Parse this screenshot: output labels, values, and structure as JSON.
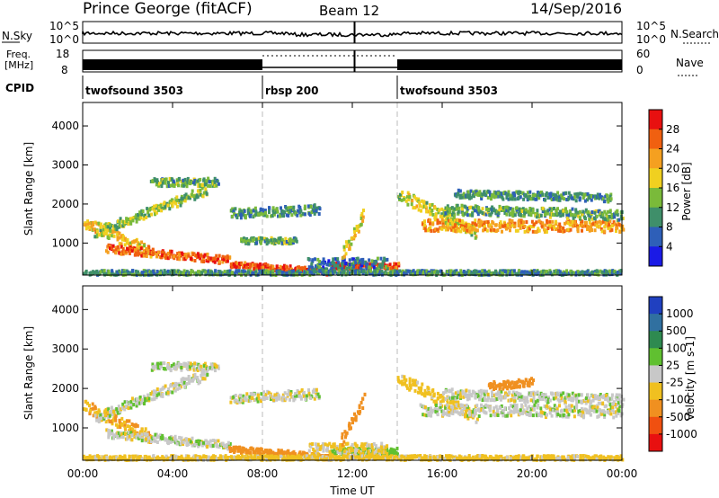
{
  "header": {
    "station": "Prince George (fitACF)",
    "beam": "Beam 12",
    "date": "14/Sep/2016"
  },
  "noise_panel": {
    "left_label": "N.Sky",
    "left_ticks": [
      "10^5",
      "10^0"
    ],
    "right_label": "N.Search",
    "right_ticks": [
      "10^5",
      "10^0"
    ]
  },
  "freq_panel": {
    "left_label_1": "Freq.",
    "left_label_2": "[MHz]",
    "left_ticks": [
      "18",
      "8"
    ],
    "right_label": "Nave",
    "right_ticks": [
      "60",
      "0"
    ]
  },
  "cpid": {
    "label": "CPID",
    "segments": [
      {
        "start": 0,
        "end": 8,
        "name": "twofsound 3503"
      },
      {
        "start": 8,
        "end": 14,
        "name": "rbsp 200"
      },
      {
        "start": 14,
        "end": 24,
        "name": "twofsound 3503"
      }
    ]
  },
  "chart_data": [
    {
      "type": "heatmap",
      "panel": "power",
      "ylabel": "Slant Range [km]",
      "xlim": [
        0,
        24
      ],
      "ylim": [
        180,
        4600
      ],
      "yticks": [
        1000,
        2000,
        3000,
        4000
      ],
      "colorbar": {
        "label": "Power [dB]",
        "ticks": [
          "4",
          "8",
          "12",
          "16",
          "20",
          "24",
          "28"
        ],
        "colors": [
          "#1a1ae6",
          "#2e5fb8",
          "#3f8f6a",
          "#7aba3a",
          "#f0d020",
          "#f5a020",
          "#f06010",
          "#e81010"
        ]
      },
      "echo_bands": [
        {
          "t0": 0.0,
          "t1": 3.0,
          "r0": 1600,
          "r1": 800,
          "w": 300,
          "level": 20
        },
        {
          "t0": 1.0,
          "t1": 6.5,
          "r0": 900,
          "r1": 600,
          "w": 200,
          "level": 26
        },
        {
          "t0": 6.5,
          "t1": 11.0,
          "r0": 500,
          "r1": 300,
          "w": 150,
          "level": 28
        },
        {
          "t0": 11.0,
          "t1": 14.0,
          "r0": 450,
          "r1": 450,
          "w": 150,
          "level": 28
        },
        {
          "t0": 0.5,
          "t1": 5.5,
          "r0": 1300,
          "r1": 2400,
          "w": 250,
          "level": 14
        },
        {
          "t0": 3.0,
          "t1": 6.0,
          "r0": 2600,
          "r1": 2600,
          "w": 200,
          "level": 12
        },
        {
          "t0": 6.5,
          "t1": 10.5,
          "r0": 1800,
          "r1": 1900,
          "w": 250,
          "level": 10
        },
        {
          "t0": 7.0,
          "t1": 9.5,
          "r0": 1100,
          "r1": 1100,
          "w": 150,
          "level": 12
        },
        {
          "t0": 10.0,
          "t1": 13.5,
          "r0": 500,
          "r1": 500,
          "w": 300,
          "level": 8
        },
        {
          "t0": 11.5,
          "t1": 12.5,
          "r0": 700,
          "r1": 1800,
          "w": 300,
          "level": 18
        },
        {
          "t0": 14.0,
          "t1": 17.5,
          "r0": 2300,
          "r1": 1300,
          "w": 300,
          "level": 16
        },
        {
          "t0": 15.0,
          "t1": 24.0,
          "r0": 1500,
          "r1": 1450,
          "w": 300,
          "level": 22
        },
        {
          "t0": 16.0,
          "t1": 24.0,
          "r0": 1900,
          "r1": 1750,
          "w": 250,
          "level": 12
        },
        {
          "t0": 16.5,
          "t1": 23.5,
          "r0": 2300,
          "r1": 2200,
          "w": 200,
          "level": 10
        },
        {
          "t0": 0.0,
          "t1": 24.0,
          "r0": 280,
          "r1": 280,
          "w": 120,
          "level": 10
        }
      ]
    },
    {
      "type": "heatmap",
      "panel": "velocity",
      "ylabel": "Slant Range [km]",
      "xlabel": "Time UT",
      "xlim": [
        0,
        24
      ],
      "ylim": [
        180,
        4600
      ],
      "yticks": [
        1000,
        2000,
        3000,
        4000
      ],
      "xticks": [
        "00:00",
        "04:00",
        "08:00",
        "12:00",
        "16:00",
        "20:00",
        "00:00"
      ],
      "colorbar": {
        "label": "Velocity [m s-1]",
        "ticks": [
          "1000",
          "500",
          "100",
          "25",
          "-25",
          "-100",
          "-500",
          "-1000"
        ],
        "colors": [
          "#2040c0",
          "#3070a0",
          "#2e8a50",
          "#60c030",
          "#c8c8c8",
          "#f0c020",
          "#f09020",
          "#f05010",
          "#e81010"
        ]
      },
      "echo_bands": [
        {
          "t0": 0.0,
          "t1": 3.0,
          "r0": 1600,
          "r1": 800,
          "w": 300,
          "level": -100
        },
        {
          "t0": 1.0,
          "t1": 6.5,
          "r0": 900,
          "r1": 600,
          "w": 200,
          "level": 0
        },
        {
          "t0": 6.5,
          "t1": 11.0,
          "r0": 500,
          "r1": 300,
          "w": 150,
          "level": -200
        },
        {
          "t0": 11.0,
          "t1": 14.0,
          "r0": 450,
          "r1": 450,
          "w": 150,
          "level": 60
        },
        {
          "t0": 0.5,
          "t1": 5.5,
          "r0": 1300,
          "r1": 2400,
          "w": 250,
          "level": 0
        },
        {
          "t0": 3.0,
          "t1": 6.0,
          "r0": 2600,
          "r1": 2600,
          "w": 200,
          "level": 0
        },
        {
          "t0": 6.5,
          "t1": 10.5,
          "r0": 1800,
          "r1": 1900,
          "w": 250,
          "level": 0
        },
        {
          "t0": 10.0,
          "t1": 13.5,
          "r0": 500,
          "r1": 500,
          "w": 300,
          "level": -40
        },
        {
          "t0": 11.5,
          "t1": 12.5,
          "r0": 700,
          "r1": 1800,
          "w": 300,
          "level": -300
        },
        {
          "t0": 14.0,
          "t1": 17.5,
          "r0": 2300,
          "r1": 1300,
          "w": 300,
          "level": -60
        },
        {
          "t0": 15.0,
          "t1": 24.0,
          "r0": 1500,
          "r1": 1450,
          "w": 300,
          "level": 0
        },
        {
          "t0": 16.0,
          "t1": 24.0,
          "r0": 1900,
          "r1": 1750,
          "w": 250,
          "level": 0
        },
        {
          "t0": 18.0,
          "t1": 20.0,
          "r0": 2100,
          "r1": 2200,
          "w": 200,
          "level": -400
        },
        {
          "t0": 0.0,
          "t1": 24.0,
          "r0": 280,
          "r1": 280,
          "w": 120,
          "level": -50
        }
      ]
    }
  ]
}
